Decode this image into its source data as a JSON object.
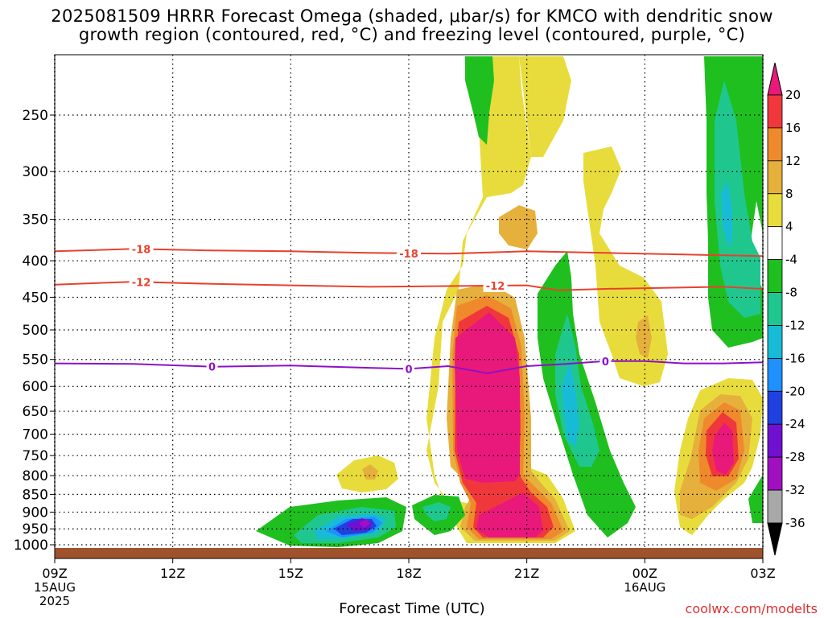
{
  "title_line1": "2025081509 HRRR Forecast Omega (shaded, μbar/s) for KMCO with dendritic snow",
  "title_line2": "growth region (contoured, red, °C) and freezing level (contoured, purple, °C)",
  "credit": "coolwx.com/modelts",
  "chart_data": {
    "type": "heatmap",
    "xlabel": "Forecast Time (UTC)",
    "ylabel": "",
    "x_ticks": [
      {
        "hours": 0,
        "label": "09Z",
        "sub1": "15AUG",
        "sub2": "2025"
      },
      {
        "hours": 3,
        "label": "12Z"
      },
      {
        "hours": 6,
        "label": "15Z"
      },
      {
        "hours": 9,
        "label": "18Z"
      },
      {
        "hours": 12,
        "label": "21Z"
      },
      {
        "hours": 15,
        "label": "00Z",
        "sub1": "16AUG"
      },
      {
        "hours": 18,
        "label": "03Z"
      }
    ],
    "xlim_hours": [
      0,
      18
    ],
    "y_pressure_ticks": [
      250,
      300,
      350,
      400,
      450,
      500,
      550,
      600,
      650,
      700,
      750,
      800,
      850,
      900,
      950,
      1000
    ],
    "colorbar": {
      "labels": [
        "20",
        "16",
        "12",
        "8",
        "4",
        "-4",
        "-8",
        "-12",
        "-16",
        "-20",
        "-24",
        "-28",
        "-32",
        "-36"
      ],
      "colors": [
        "#e8197a",
        "#f0383c",
        "#ee8a2c",
        "#e6b03c",
        "#e8dc3c",
        "#ffffff",
        "#1fbf1f",
        "#1fc78f",
        "#18bbd6",
        "#1e90ff",
        "#2040e0",
        "#7010d0",
        "#a010c0",
        "#a8a8a8",
        "#000000"
      ]
    },
    "contours": [
      {
        "kind": "dendritic",
        "level": "-18",
        "color": "#e8412e",
        "hours": [
          0,
          2,
          4,
          6,
          8,
          10,
          12,
          14,
          16,
          18
        ],
        "pressure": [
          388,
          385,
          387,
          388,
          390,
          391,
          388,
          390,
          392,
          394
        ],
        "labels": [
          {
            "hours": 2.2,
            "text": "-18"
          },
          {
            "hours": 9.0,
            "text": "-18"
          }
        ]
      },
      {
        "kind": "dendritic",
        "level": "-12",
        "color": "#e8412e",
        "hours": [
          0,
          2,
          4,
          6,
          8,
          10,
          12,
          12.8,
          14,
          16,
          17,
          18
        ],
        "pressure": [
          432,
          428,
          431,
          433,
          435,
          434,
          433,
          440,
          438,
          436,
          435,
          438
        ],
        "labels": [
          {
            "hours": 2.2,
            "text": "-12"
          },
          {
            "hours": 11.2,
            "text": "-12"
          }
        ]
      },
      {
        "kind": "freezing",
        "level": "0",
        "color": "#8e10c8",
        "hours": [
          0,
          2,
          4,
          6,
          8,
          9,
          10,
          11,
          12,
          13,
          14,
          15,
          16,
          17,
          18
        ],
        "pressure": [
          557,
          558,
          563,
          561,
          565,
          567,
          562,
          575,
          562,
          558,
          553,
          553,
          557,
          557,
          555
        ],
        "labels": [
          {
            "hours": 4.0,
            "text": "0"
          },
          {
            "hours": 9.0,
            "text": "0"
          },
          {
            "hours": 14.0,
            "text": "0"
          }
        ]
      }
    ]
  }
}
